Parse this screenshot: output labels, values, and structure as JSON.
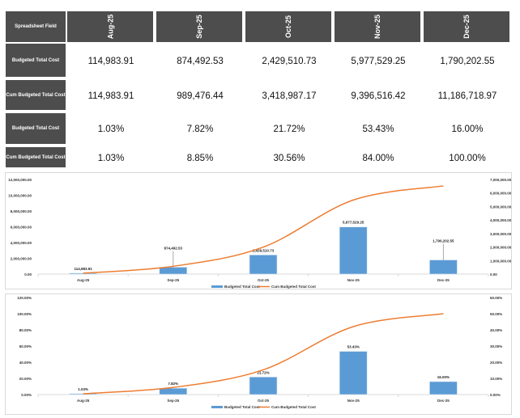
{
  "table": {
    "header_label": "Spreadsheet Field",
    "months": [
      "Aug-25",
      "Sep-25",
      "Oct-25",
      "Nov-25",
      "Dec-25"
    ],
    "rows": [
      {
        "label": "Budgeted Total Cost",
        "values": [
          "114,983.91",
          "874,492.53",
          "2,429,510.73",
          "5,977,529.25",
          "1,790,202.55"
        ]
      },
      {
        "label": "Cum Budgeted Total Cost",
        "values": [
          "114,983.91",
          "989,476.44",
          "3,418,987.17",
          "9,396,516.42",
          "11,186,718.97"
        ]
      },
      {
        "label": "Budgeted Total Cost",
        "values": [
          "1.03%",
          "7.82%",
          "21.72%",
          "53.43%",
          "16.00%"
        ]
      },
      {
        "label": "Cum Budgeted Total Cost",
        "values": [
          "1.03%",
          "8.85%",
          "30.56%",
          "84.00%",
          "100.00%"
        ]
      }
    ]
  },
  "colors": {
    "header_bg": "#4d4d4d",
    "bar": "#5b9bd5",
    "line": "#ed7d31"
  },
  "chart_data": [
    {
      "type": "bar",
      "categories": [
        "Aug-25",
        "Sep-25",
        "Oct-25",
        "Nov-25",
        "Dec-25"
      ],
      "series": [
        {
          "name": "Budgeted Total Cost",
          "kind": "bar",
          "values": [
            114983.91,
            874492.53,
            2429510.73,
            5977529.25,
            1790202.55
          ],
          "labels": [
            "114,983.91",
            "874,492.53",
            "2,429,510.73",
            "5,977,529.25",
            "1,790,202.55"
          ]
        },
        {
          "name": "Cum Budgeted Total Cost",
          "kind": "line",
          "values": [
            114983.91,
            989476.44,
            3418987.17,
            9396516.42,
            11186718.97
          ]
        }
      ],
      "ylim": [
        0,
        12000000
      ],
      "yticks": [
        "0.00",
        "2,000,000.00",
        "4,000,000.00",
        "6,000,000.00",
        "8,000,000.00",
        "10,000,000.00",
        "12,000,000.00"
      ],
      "y2lim": [
        0,
        7000000
      ],
      "y2ticks": [
        "0.00",
        "1,000,000.00",
        "2,000,000.00",
        "3,000,000.00",
        "4,000,000.00",
        "5,000,000.00",
        "6,000,000.00",
        "7,000,000.00"
      ],
      "legend": "bottom"
    },
    {
      "type": "bar",
      "categories": [
        "Aug-25",
        "Sep-25",
        "Oct-25",
        "Nov-25",
        "Dec-25"
      ],
      "series": [
        {
          "name": "Budgeted Total Cost",
          "kind": "bar",
          "values": [
            1.03,
            7.82,
            21.72,
            53.43,
            16.0
          ],
          "labels": [
            "1.03%",
            "7.82%",
            "21.72%",
            "53.43%",
            "16.00%"
          ]
        },
        {
          "name": "Cum Budgeted Total Cost",
          "kind": "line",
          "values": [
            1.03,
            8.85,
            30.56,
            84.0,
            100.0
          ]
        }
      ],
      "ylim": [
        0,
        120
      ],
      "yticks": [
        "0.00%",
        "20.00%",
        "40.00%",
        "60.00%",
        "80.00%",
        "100.00%",
        "120.00%"
      ],
      "y2lim": [
        0,
        60
      ],
      "y2ticks": [
        "0.00%",
        "10.00%",
        "20.00%",
        "30.00%",
        "40.00%",
        "50.00%",
        "60.00%"
      ],
      "legend": "bottom"
    }
  ]
}
